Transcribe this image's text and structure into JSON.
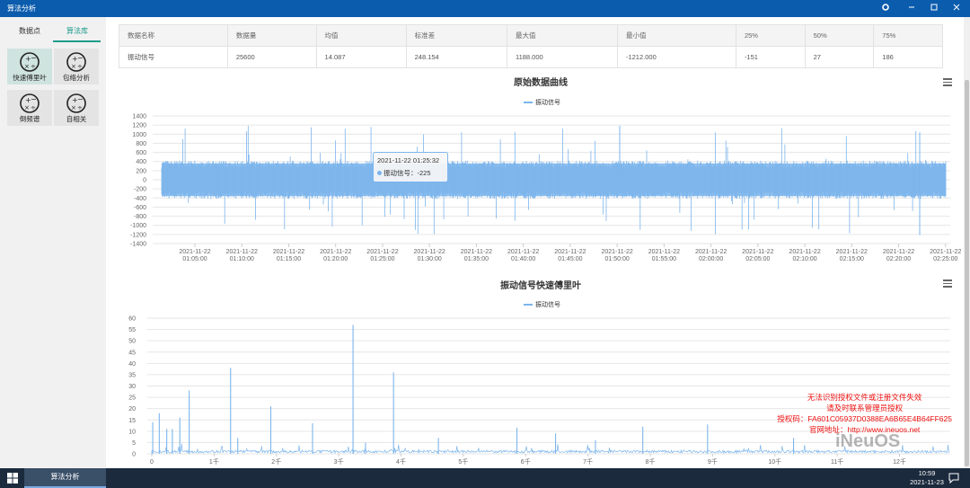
{
  "window": {
    "title": "算法分析",
    "controls": [
      "gear-icon",
      "minimize-icon",
      "maximize-icon",
      "close-icon"
    ]
  },
  "left_panel": {
    "tabs": [
      {
        "label": "数据点",
        "active": false
      },
      {
        "label": "算法库",
        "active": true
      }
    ],
    "tiles": [
      {
        "label": "快速傅里叶",
        "icon": "algorithm-icon",
        "active": true
      },
      {
        "label": "包络分析",
        "icon": "algorithm-icon",
        "active": false
      },
      {
        "label": "倒频谱",
        "icon": "algorithm-icon",
        "active": false
      },
      {
        "label": "自相关",
        "icon": "algorithm-icon",
        "active": false
      }
    ]
  },
  "stats_table": {
    "headers": [
      "数据名称",
      "数据量",
      "均值",
      "标准差",
      "最大值",
      "最小值",
      "25%",
      "50%",
      "75%"
    ],
    "row": [
      "振动信号",
      "25600",
      "14.087",
      "248.154",
      "1188.000",
      "-1212.000",
      "-151",
      "27",
      "186"
    ]
  },
  "chart_data": [
    {
      "type": "line",
      "title": "原始数据曲线",
      "series": [
        {
          "name": "振动信号",
          "color": "#7cb5ec"
        }
      ],
      "y_ticks": [
        "1400",
        "1200",
        "1000",
        "800",
        "600",
        "400",
        "200",
        "0",
        "-200",
        "-400",
        "-600",
        "-800",
        "-1000",
        "-1200",
        "-1400"
      ],
      "ylim": [
        -1400,
        1400
      ],
      "x_ticks": [
        [
          "2021-11-22",
          "01:05:00"
        ],
        [
          "2021-11-22",
          "01:10:00"
        ],
        [
          "2021-11-22",
          "01:15:00"
        ],
        [
          "2021-11-22",
          "01:20:00"
        ],
        [
          "2021-11-22",
          "01:25:00"
        ],
        [
          "2021-11-22",
          "01:30:00"
        ],
        [
          "2021-11-22",
          "01:35:00"
        ],
        [
          "2021-11-22",
          "01:40:00"
        ],
        [
          "2021-11-22",
          "01:45:00"
        ],
        [
          "2021-11-22",
          "01:50:00"
        ],
        [
          "2021-11-22",
          "01:55:00"
        ],
        [
          "2021-11-22",
          "02:00:00"
        ],
        [
          "2021-11-22",
          "02:05:00"
        ],
        [
          "2021-11-22",
          "02:10:00"
        ],
        [
          "2021-11-22",
          "02:15:00"
        ],
        [
          "2021-11-22",
          "02:20:00"
        ],
        [
          "2021-11-22",
          "02:25:00"
        ]
      ],
      "xlim": [
        "2021-11-22 01:00:30",
        "2021-11-22 02:25:30"
      ],
      "grid": true,
      "legend_position": "top-center",
      "envelope": {
        "typical_upper": 420,
        "typical_lower": -420,
        "max": 1188,
        "min": -1212
      },
      "tooltip": {
        "time": "2021-11-22 01:25:32",
        "series": "振动信号",
        "value": "-225"
      }
    },
    {
      "type": "line",
      "title": "振动信号快速傅里叶",
      "series": [
        {
          "name": "振动信号",
          "color": "#7cb5ec",
          "peaks": [
            {
              "x": 15,
              "y": 14
            },
            {
              "x": 120,
              "y": 18
            },
            {
              "x": 240,
              "y": 11
            },
            {
              "x": 330,
              "y": 11
            },
            {
              "x": 450,
              "y": 16
            },
            {
              "x": 600,
              "y": 28
            },
            {
              "x": 1265,
              "y": 38
            },
            {
              "x": 1380,
              "y": 7
            },
            {
              "x": 1910,
              "y": 21
            },
            {
              "x": 2580,
              "y": 13.5
            },
            {
              "x": 3230,
              "y": 57
            },
            {
              "x": 3430,
              "y": 5
            },
            {
              "x": 3880,
              "y": 36
            },
            {
              "x": 4600,
              "y": 7
            },
            {
              "x": 5860,
              "y": 11.5
            },
            {
              "x": 6480,
              "y": 9
            },
            {
              "x": 7120,
              "y": 6
            },
            {
              "x": 7880,
              "y": 12
            },
            {
              "x": 8920,
              "y": 13
            },
            {
              "x": 10300,
              "y": 7
            }
          ]
        }
      ],
      "y_ticks": [
        "60",
        "55",
        "50",
        "45",
        "40",
        "35",
        "30",
        "25",
        "20",
        "15",
        "10",
        "5",
        "0"
      ],
      "ylim": [
        0,
        60
      ],
      "x_ticks": [
        "0",
        "1千",
        "2千",
        "3千",
        "4千",
        "5千",
        "6千",
        "7千",
        "8千",
        "9千",
        "10千",
        "11千",
        "12千"
      ],
      "xlim": [
        0,
        12800
      ],
      "grid": true,
      "legend_position": "top-center"
    }
  ],
  "license": {
    "lines": [
      "无法识别授权文件或注册文件失效",
      "请及时联系管理员授权",
      "授权码：FA601C05937D0388EA6B65E4B64FF625",
      "官网地址：http://www.ineuos.net"
    ]
  },
  "watermark": "iNeuOS",
  "taskbar": {
    "app_label": "算法分析",
    "time": "10:59",
    "date": "2021-11-23"
  }
}
